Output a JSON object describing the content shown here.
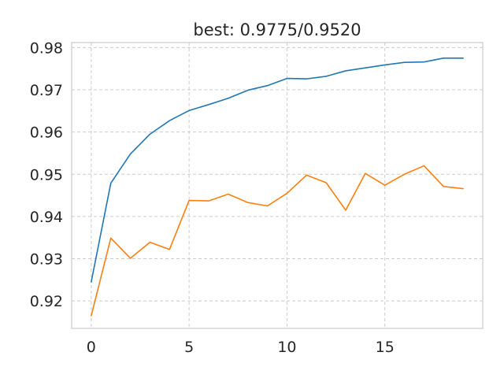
{
  "chart_data": {
    "type": "line",
    "title": "best: 0.9775/0.9520",
    "xlabel": "",
    "ylabel": "",
    "xlim": [
      -1,
      20
    ],
    "ylim": [
      0.9135,
      0.9812
    ],
    "xticks": [
      0,
      5,
      10,
      15
    ],
    "xtick_labels": [
      "0",
      "5",
      "10",
      "15"
    ],
    "yticks": [
      0.92,
      0.93,
      0.94,
      0.95,
      0.96,
      0.97,
      0.98
    ],
    "ytick_labels": [
      "0.92",
      "0.93",
      "0.94",
      "0.95",
      "0.96",
      "0.97",
      "0.98"
    ],
    "grid": true,
    "legend": "none",
    "x": [
      0,
      1,
      2,
      3,
      4,
      5,
      6,
      7,
      8,
      9,
      10,
      11,
      12,
      13,
      14,
      15,
      16,
      17,
      18,
      19
    ],
    "series": [
      {
        "color": "#1f77b4",
        "values": [
          0.9245,
          0.9479,
          0.9548,
          0.9595,
          0.9627,
          0.9651,
          0.9665,
          0.968,
          0.9699,
          0.971,
          0.9727,
          0.9726,
          0.9732,
          0.9745,
          0.9752,
          0.9759,
          0.9765,
          0.9766,
          0.9775,
          0.9775
        ]
      },
      {
        "color": "#ff7f0e",
        "values": [
          0.9165,
          0.9349,
          0.9301,
          0.9339,
          0.9322,
          0.9438,
          0.9437,
          0.9453,
          0.9433,
          0.9425,
          0.9455,
          0.9498,
          0.948,
          0.9415,
          0.9502,
          0.9474,
          0.95,
          0.952,
          0.9471,
          0.9466
        ]
      }
    ]
  }
}
